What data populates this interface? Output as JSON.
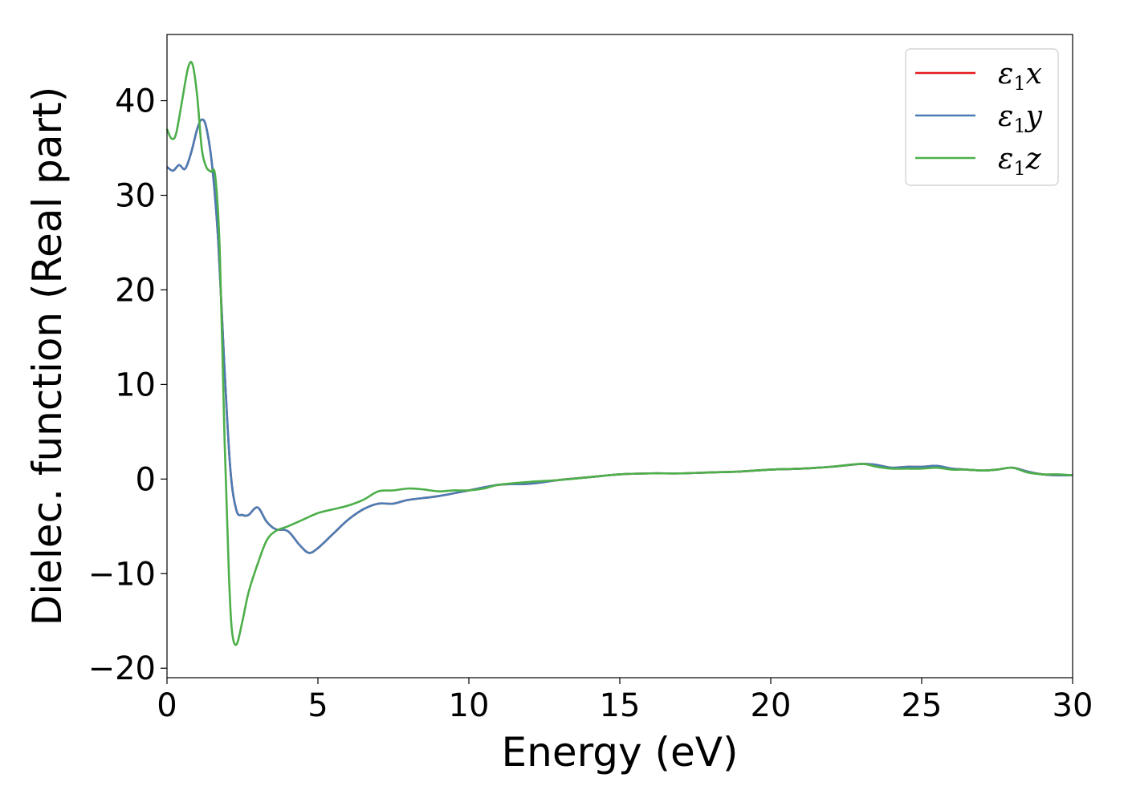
{
  "chart_data": {
    "type": "line",
    "xlabel": "Energy (eV)",
    "ylabel": "Dielec. function (Real part)",
    "xlim": [
      0,
      30
    ],
    "ylim": [
      -21,
      47
    ],
    "xticks": [
      0,
      5,
      10,
      15,
      20,
      25,
      30
    ],
    "xtick_labels": [
      "0",
      "5",
      "10",
      "15",
      "20",
      "25",
      "30"
    ],
    "yticks": [
      -20,
      -10,
      0,
      10,
      20,
      30,
      40
    ],
    "ytick_labels": [
      "−20",
      "−10",
      "0",
      "10",
      "20",
      "30",
      "40"
    ],
    "grid": false,
    "legend_position": "top-right",
    "series": [
      {
        "name": "ε₁x",
        "legend_main": "ε",
        "legend_sub": "1",
        "legend_suffix": "x",
        "color": "#e41a1c",
        "x": [
          0,
          0.2,
          0.4,
          0.6,
          0.8,
          1.0,
          1.15,
          1.3,
          1.5,
          1.7,
          1.9,
          2.1,
          2.3,
          2.5,
          2.7,
          3.0,
          3.3,
          3.6,
          4.0,
          4.4,
          4.7,
          5.0,
          5.5,
          6.0,
          6.5,
          7.0,
          7.5,
          8.0,
          9.0,
          10.0,
          11.0,
          12.0,
          13.0,
          14.0,
          15.0,
          16.0,
          17.0,
          18.0,
          19.0,
          20.0,
          21.0,
          22.0,
          23.0,
          23.5,
          24.0,
          24.5,
          25.0,
          25.5,
          26.0,
          26.5,
          27.0,
          27.5,
          28.0,
          28.5,
          29.0,
          29.5,
          30.0
        ],
        "y": [
          33,
          32.6,
          33.2,
          32.8,
          34.5,
          37.0,
          38.0,
          37.2,
          33.0,
          25.0,
          12.0,
          1.0,
          -3.3,
          -3.8,
          -3.8,
          -3.0,
          -4.5,
          -5.3,
          -5.5,
          -7.0,
          -7.8,
          -7.3,
          -5.8,
          -4.3,
          -3.2,
          -2.6,
          -2.6,
          -2.2,
          -1.8,
          -1.2,
          -0.6,
          -0.5,
          -0.1,
          0.2,
          0.5,
          0.6,
          0.6,
          0.7,
          0.8,
          1.0,
          1.1,
          1.3,
          1.6,
          1.5,
          1.2,
          1.3,
          1.3,
          1.4,
          1.1,
          1.0,
          0.9,
          1.0,
          1.2,
          0.8,
          0.5,
          0.4,
          0.4
        ]
      },
      {
        "name": "ε₁y",
        "legend_main": "ε",
        "legend_sub": "1",
        "legend_suffix": "y",
        "color": "#4a7db5",
        "x": [
          0,
          0.2,
          0.4,
          0.6,
          0.8,
          1.0,
          1.15,
          1.3,
          1.5,
          1.7,
          1.9,
          2.1,
          2.3,
          2.5,
          2.7,
          3.0,
          3.3,
          3.6,
          4.0,
          4.4,
          4.7,
          5.0,
          5.5,
          6.0,
          6.5,
          7.0,
          7.5,
          8.0,
          9.0,
          10.0,
          11.0,
          12.0,
          13.0,
          14.0,
          15.0,
          16.0,
          17.0,
          18.0,
          19.0,
          20.0,
          21.0,
          22.0,
          23.0,
          23.5,
          24.0,
          24.5,
          25.0,
          25.5,
          26.0,
          26.5,
          27.0,
          27.5,
          28.0,
          28.5,
          29.0,
          29.5,
          30.0
        ],
        "y": [
          33,
          32.6,
          33.2,
          32.8,
          34.5,
          37.0,
          38.0,
          37.2,
          33.0,
          25.0,
          12.0,
          1.0,
          -3.3,
          -3.8,
          -3.8,
          -3.0,
          -4.5,
          -5.3,
          -5.5,
          -7.0,
          -7.8,
          -7.3,
          -5.8,
          -4.3,
          -3.2,
          -2.6,
          -2.6,
          -2.2,
          -1.8,
          -1.2,
          -0.6,
          -0.5,
          -0.1,
          0.2,
          0.5,
          0.6,
          0.6,
          0.7,
          0.8,
          1.0,
          1.1,
          1.3,
          1.6,
          1.5,
          1.2,
          1.3,
          1.3,
          1.4,
          1.1,
          1.0,
          0.9,
          1.0,
          1.2,
          0.8,
          0.5,
          0.4,
          0.4
        ]
      },
      {
        "name": "ε₁z",
        "legend_main": "ε",
        "legend_sub": "1",
        "legend_suffix": "z",
        "color": "#4daf4a",
        "x": [
          0,
          0.15,
          0.3,
          0.5,
          0.7,
          0.85,
          1.0,
          1.15,
          1.3,
          1.45,
          1.6,
          1.75,
          1.9,
          2.05,
          2.15,
          2.3,
          2.5,
          2.7,
          3.0,
          3.3,
          3.6,
          4.0,
          4.5,
          5.0,
          5.5,
          6.0,
          6.5,
          7.0,
          7.5,
          8.0,
          8.5,
          9.0,
          9.5,
          10.0,
          10.5,
          11.0,
          12.0,
          13.0,
          14.0,
          15.0,
          16.0,
          17.0,
          18.0,
          19.0,
          20.0,
          21.0,
          22.0,
          23.0,
          23.5,
          24.0,
          24.5,
          25.0,
          25.5,
          26.0,
          26.5,
          27.0,
          27.5,
          28.0,
          28.5,
          29.0,
          29.5,
          30.0
        ],
        "y": [
          37,
          36,
          36.5,
          40,
          43.5,
          43.8,
          40.5,
          35,
          33.0,
          32.5,
          32.0,
          24.0,
          5.0,
          -10.0,
          -16.0,
          -17.5,
          -15.0,
          -12.0,
          -9.0,
          -6.5,
          -5.5,
          -5.0,
          -4.3,
          -3.6,
          -3.2,
          -2.8,
          -2.2,
          -1.3,
          -1.2,
          -1.0,
          -1.1,
          -1.3,
          -1.2,
          -1.2,
          -1.0,
          -0.6,
          -0.3,
          -0.1,
          0.2,
          0.5,
          0.6,
          0.6,
          0.7,
          0.8,
          1.0,
          1.1,
          1.3,
          1.6,
          1.3,
          1.1,
          1.1,
          1.1,
          1.2,
          1.0,
          1.0,
          0.9,
          1.0,
          1.2,
          0.7,
          0.5,
          0.5,
          0.4
        ]
      }
    ]
  }
}
